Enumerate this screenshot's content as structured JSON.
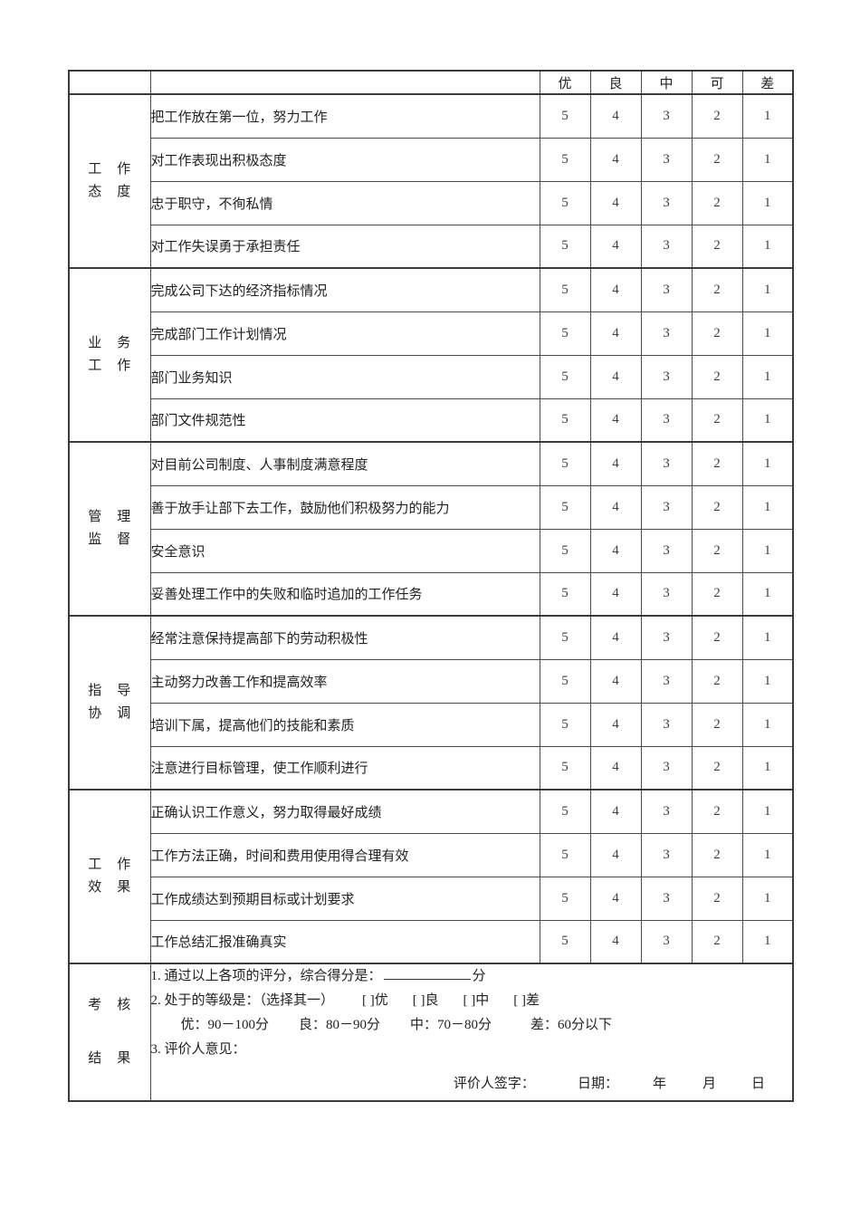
{
  "header": {
    "columns": [
      "优",
      "良",
      "中",
      "可",
      "差"
    ]
  },
  "sections": [
    {
      "category": "工作态度",
      "category_lines": [
        "工　作",
        "态　度"
      ],
      "rows": [
        {
          "text": "把工作放在第一位，努力工作",
          "scores": [
            "5",
            "4",
            "3",
            "2",
            "1"
          ]
        },
        {
          "text": "对工作表现出积极态度",
          "scores": [
            "5",
            "4",
            "3",
            "2",
            "1"
          ]
        },
        {
          "text": "忠于职守，不徇私情",
          "scores": [
            "5",
            "4",
            "3",
            "2",
            "1"
          ]
        },
        {
          "text": "对工作失误勇于承担责任",
          "scores": [
            "5",
            "4",
            "3",
            "2",
            "1"
          ]
        }
      ]
    },
    {
      "category": "业务工作",
      "category_lines": [
        "业　务",
        "工　作"
      ],
      "rows": [
        {
          "text": "完成公司下达的经济指标情况",
          "scores": [
            "5",
            "4",
            "3",
            "2",
            "1"
          ]
        },
        {
          "text": "完成部门工作计划情况",
          "scores": [
            "5",
            "4",
            "3",
            "2",
            "1"
          ]
        },
        {
          "text": "部门业务知识",
          "scores": [
            "5",
            "4",
            "3",
            "2",
            "1"
          ]
        },
        {
          "text": "部门文件规范性",
          "scores": [
            "5",
            "4",
            "3",
            "2",
            "1"
          ]
        }
      ]
    },
    {
      "category": "管理监督",
      "category_lines": [
        "管　理",
        "监　督"
      ],
      "rows": [
        {
          "text": "对目前公司制度、人事制度满意程度",
          "scores": [
            "5",
            "4",
            "3",
            "2",
            "1"
          ]
        },
        {
          "text": "善于放手让部下去工作，鼓励他们积极努力的能力",
          "scores": [
            "5",
            "4",
            "3",
            "2",
            "1"
          ]
        },
        {
          "text": "安全意识",
          "scores": [
            "5",
            "4",
            "3",
            "2",
            "1"
          ]
        },
        {
          "text": "妥善处理工作中的失败和临时追加的工作任务",
          "scores": [
            "5",
            "4",
            "3",
            "2",
            "1"
          ]
        }
      ]
    },
    {
      "category": "指导协调",
      "category_lines": [
        "指　导",
        "协　调"
      ],
      "rows": [
        {
          "text": "经常注意保持提高部下的劳动积极性",
          "scores": [
            "5",
            "4",
            "3",
            "2",
            "1"
          ]
        },
        {
          "text": "主动努力改善工作和提高效率",
          "scores": [
            "5",
            "4",
            "3",
            "2",
            "1"
          ]
        },
        {
          "text": "培训下属，提高他们的技能和素质",
          "scores": [
            "5",
            "4",
            "3",
            "2",
            "1"
          ]
        },
        {
          "text": "注意进行目标管理，使工作顺利进行",
          "scores": [
            "5",
            "4",
            "3",
            "2",
            "1"
          ]
        }
      ]
    },
    {
      "category": "工作效果",
      "category_lines": [
        "工　作",
        "效　果"
      ],
      "rows": [
        {
          "text": "正确认识工作意义，努力取得最好成绩",
          "scores": [
            "5",
            "4",
            "3",
            "2",
            "1"
          ]
        },
        {
          "text": "工作方法正确，时间和费用使用得合理有效",
          "scores": [
            "5",
            "4",
            "3",
            "2",
            "1"
          ]
        },
        {
          "text": "工作成绩达到预期目标或计划要求",
          "scores": [
            "5",
            "4",
            "3",
            "2",
            "1"
          ]
        },
        {
          "text": "工作总结汇报准确真实",
          "scores": [
            "5",
            "4",
            "3",
            "2",
            "1"
          ]
        }
      ]
    }
  ],
  "result": {
    "category": "考核结果",
    "category_lines": [
      "考　核",
      "结　果"
    ],
    "line1_prefix": "1. 通过以上各项的评分，综合得分是：",
    "line1_suffix": "分",
    "line2_prefix": "2. 处于的等级是：（选择其一）",
    "line2_options": [
      "[ ]优",
      "[ ]良",
      "[ ]中",
      "[ ]差"
    ],
    "line3_items": [
      "优：90－100分",
      "良：80－90分",
      "中：70－80分",
      "差：60分以下"
    ],
    "line4": "3. 评价人意见：",
    "signature": {
      "sign_label": "评价人签字：",
      "date_label": "日期：",
      "year_label": "年",
      "month_label": "月",
      "day_label": "日"
    }
  }
}
